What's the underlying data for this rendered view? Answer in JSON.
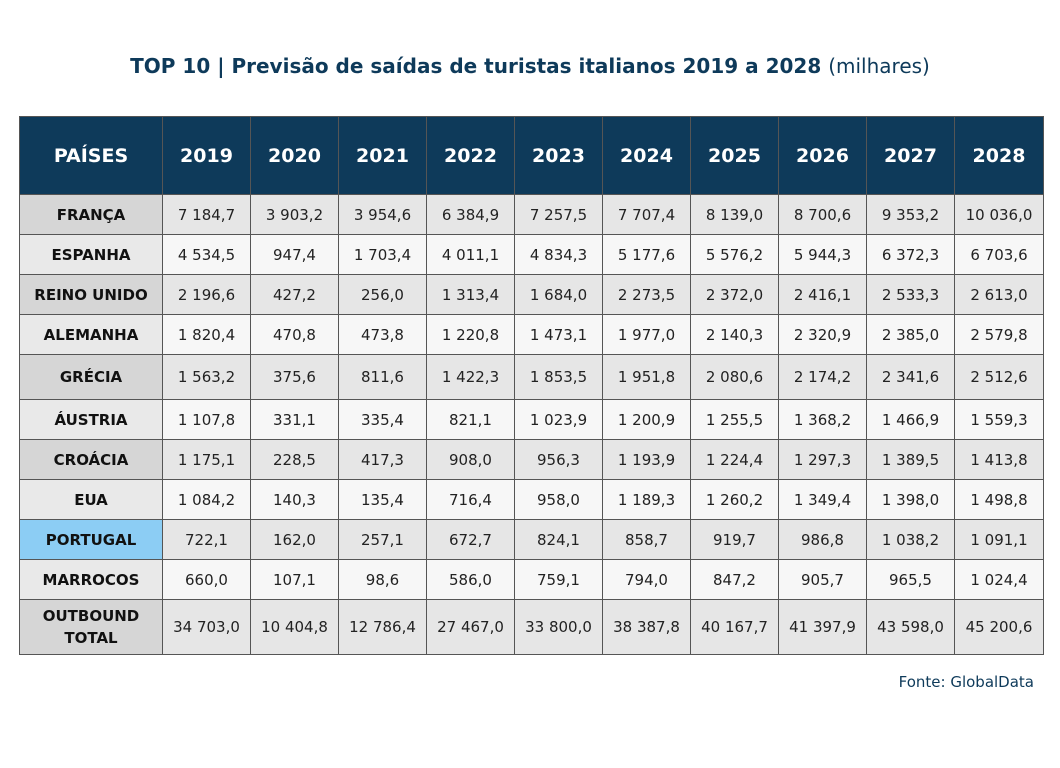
{
  "title": {
    "main": "TOP 10 | Previsão de saídas de turistas italianos 2019 a 2028",
    "unit": "(milhares)"
  },
  "table": {
    "header": [
      "PAÍSES",
      "2019",
      "2020",
      "2021",
      "2022",
      "2023",
      "2024",
      "2025",
      "2026",
      "2027",
      "2028"
    ],
    "rows": [
      {
        "country": "FRANÇA",
        "values": [
          "7 184,7",
          "3 903,2",
          "3 954,6",
          "6 384,9",
          "7 257,5",
          "7 707,4",
          "8 139,0",
          "8 700,6",
          "9 353,2",
          "10 036,0"
        ]
      },
      {
        "country": "ESPANHA",
        "values": [
          "4 534,5",
          "947,4",
          "1 703,4",
          "4 011,1",
          "4 834,3",
          "5 177,6",
          "5 576,2",
          "5 944,3",
          "6 372,3",
          "6 703,6"
        ]
      },
      {
        "country": "REINO UNIDO",
        "values": [
          "2 196,6",
          "427,2",
          "256,0",
          "1 313,4",
          "1 684,0",
          "2 273,5",
          "2 372,0",
          "2 416,1",
          "2 533,3",
          "2 613,0"
        ]
      },
      {
        "country": "ALEMANHA",
        "values": [
          "1 820,4",
          "470,8",
          "473,8",
          "1 220,8",
          "1 473,1",
          "1 977,0",
          "2 140,3",
          "2 320,9",
          "2 385,0",
          "2 579,8"
        ]
      },
      {
        "country": "GRÉCIA",
        "values": [
          "1 563,2",
          "375,6",
          "811,6",
          "1 422,3",
          "1 853,5",
          "1 951,8",
          "2 080,6",
          "2 174,2",
          "2 341,6",
          "2 512,6"
        ]
      },
      {
        "country": "ÁUSTRIA",
        "values": [
          "1 107,8",
          "331,1",
          "335,4",
          "821,1",
          "1 023,9",
          "1 200,9",
          "1 255,5",
          "1 368,2",
          "1 466,9",
          "1 559,3"
        ]
      },
      {
        "country": "CROÁCIA",
        "values": [
          "1 175,1",
          "228,5",
          "417,3",
          "908,0",
          "956,3",
          "1 193,9",
          "1 224,4",
          "1 297,3",
          "1 389,5",
          "1 413,8"
        ]
      },
      {
        "country": "EUA",
        "values": [
          "1 084,2",
          "140,3",
          "135,4",
          "716,4",
          "958,0",
          "1 189,3",
          "1 260,2",
          "1 349,4",
          "1 398,0",
          "1 498,8"
        ]
      },
      {
        "country": "PORTUGAL",
        "values": [
          "722,1",
          "162,0",
          "257,1",
          "672,7",
          "824,1",
          "858,7",
          "919,7",
          "986,8",
          "1 038,2",
          "1 091,1"
        ]
      },
      {
        "country": "MARROCOS",
        "values": [
          "660,0",
          "107,1",
          "98,6",
          "586,0",
          "759,1",
          "794,0",
          "847,2",
          "905,7",
          "965,5",
          "1 024,4"
        ]
      }
    ],
    "total": {
      "label_line1": "OUTBOUND",
      "label_line2": "TOTAL",
      "values": [
        "34 703,0",
        "10 404,8",
        "12 786,4",
        "27 467,0",
        "33 800,0",
        "38 387,8",
        "40 167,7",
        "41 397,9",
        "43 598,0",
        "45 200,6"
      ]
    }
  },
  "source": "Fonte: GlobalData",
  "colors": {
    "header_bg": "#0e3a5a",
    "highlight": "#8ccdf4",
    "title": "#0e3a5a"
  }
}
